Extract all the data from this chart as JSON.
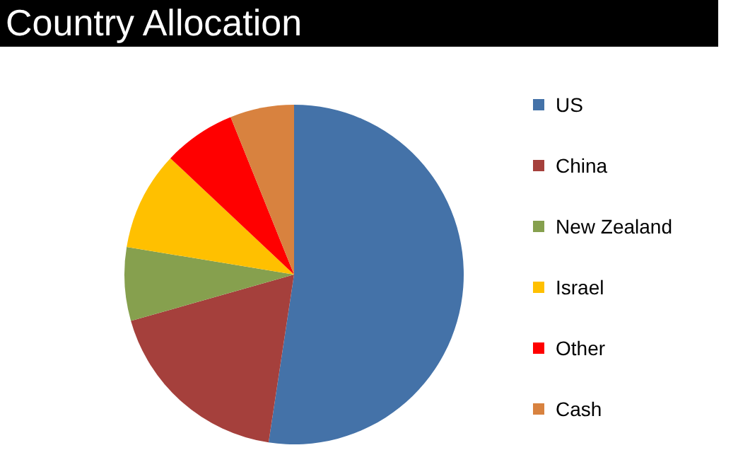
{
  "chart_data": {
    "type": "pie",
    "title": "Country Allocation",
    "categories": [
      "US",
      "China",
      "New Zealand",
      "Israel",
      "Other",
      "Cash"
    ],
    "values": [
      52.4,
      18.2,
      7,
      9.4,
      6.9,
      6.1
    ],
    "colors": [
      "#4472a8",
      "#a5403c",
      "#86a04e",
      "#ffc000",
      "#ff0000",
      "#d8823f"
    ],
    "legend": "right"
  }
}
